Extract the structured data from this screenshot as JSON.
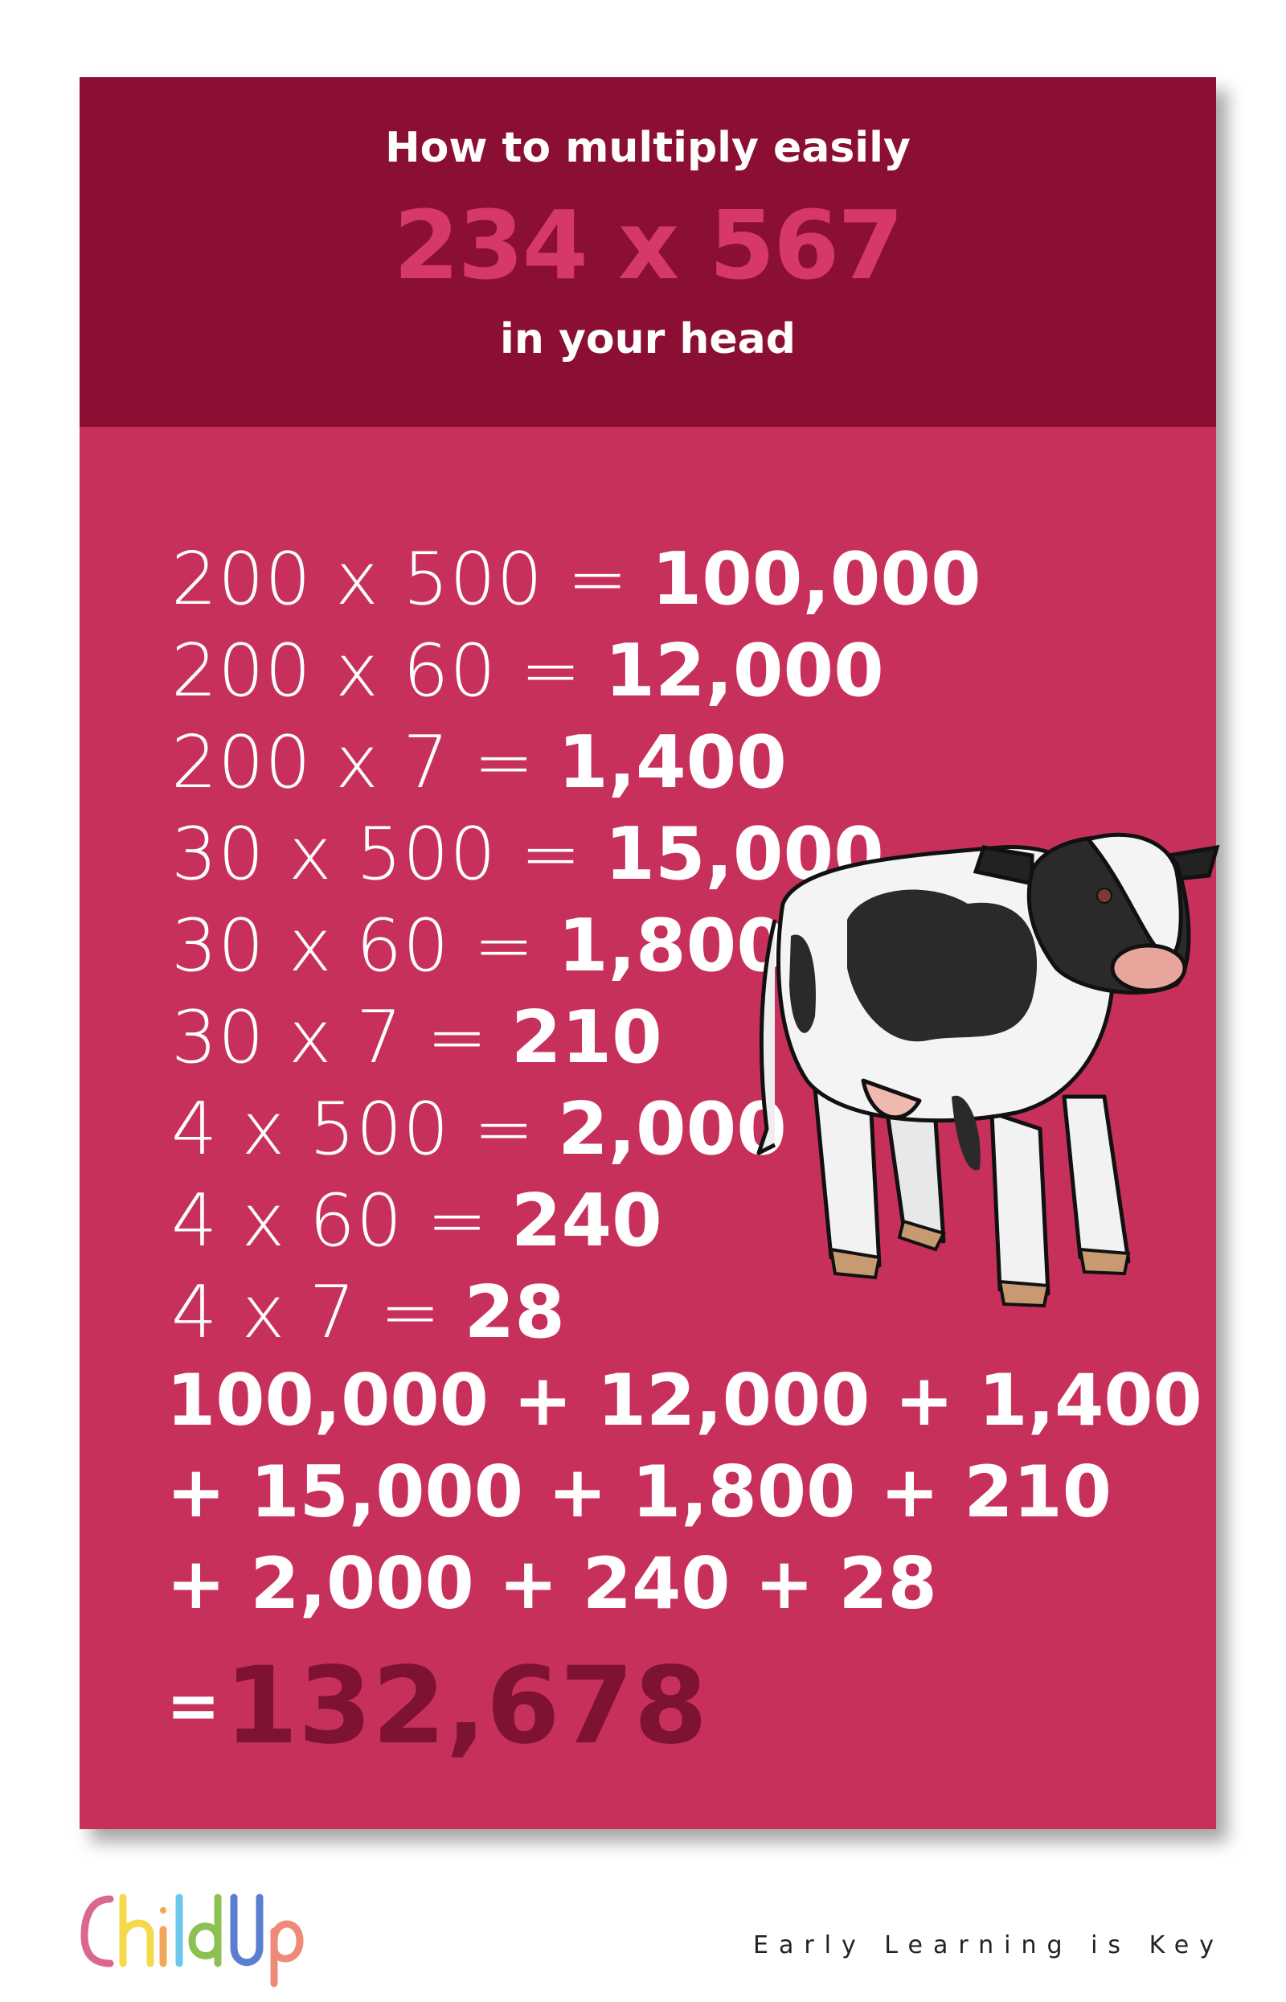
{
  "header": {
    "title": "How to multiply easily",
    "problem": "234 x 567",
    "subtitle": "in your head"
  },
  "steps": [
    {
      "lhs": "200 x 500 =",
      "rhs": "100,000"
    },
    {
      "lhs": "200 x 60 =",
      "rhs": "12,000"
    },
    {
      "lhs": "200 x 7 =",
      "rhs": "1,400"
    },
    {
      "lhs": "30 x 500 =",
      "rhs": "15,000"
    },
    {
      "lhs": "30 x 60 =",
      "rhs": "1,800"
    },
    {
      "lhs": "30 x 7 =",
      "rhs": "210"
    },
    {
      "lhs": "4 x 500 =",
      "rhs": "2,000"
    },
    {
      "lhs": "4 x 60 =",
      "rhs": "240"
    },
    {
      "lhs": "4 x 7 =",
      "rhs": "28"
    }
  ],
  "sum_lines": [
    "100,000 + 12,000 + 1,400",
    "+ 15,000 + 1,800 + 210",
    "+ 2,000 + 240 + 28"
  ],
  "result": {
    "equals": "=",
    "value": "132,678"
  },
  "illustration": "cow",
  "footer": {
    "logo": "ChildUp",
    "tagline": "Early Learning is Key"
  },
  "colors": {
    "header": "#8b0f33",
    "body": "#c8305c",
    "problem": "#d6386a",
    "result": "#7e1232"
  }
}
